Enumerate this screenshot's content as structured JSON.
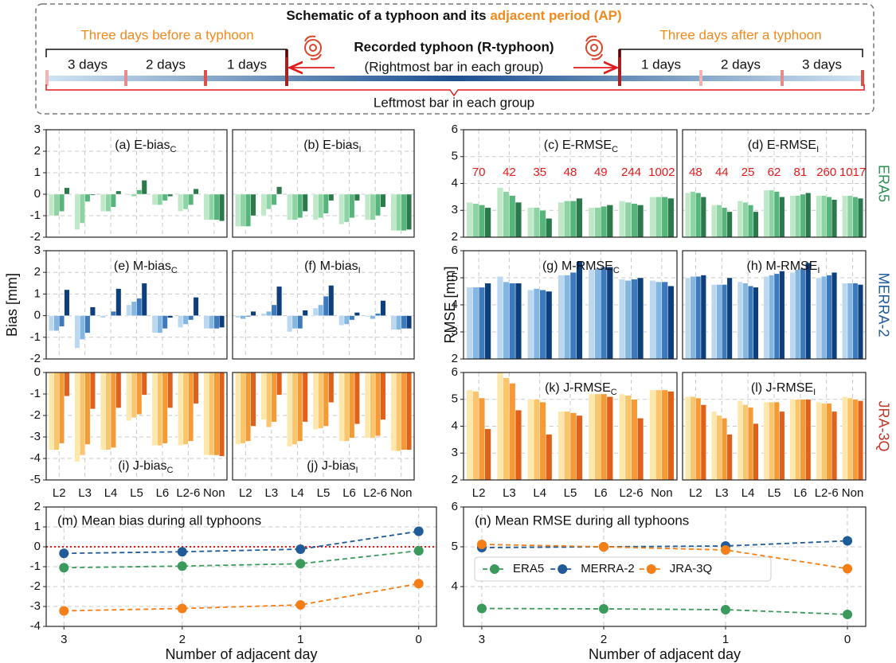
{
  "header": {
    "title": "Schematic of a typhoon and its ",
    "title_highlight": "adjacent period (AP)",
    "before": "Three days before a typhoon",
    "after": "Three days after a typhoon",
    "recorded": "Recorded typhoon (R-typhoon)",
    "rightmost": "(Rightmost bar in each group)",
    "leftmost": "Leftmost bar in each group",
    "days_before": [
      "3 days",
      "2 days",
      "1 days"
    ],
    "days_after": [
      "1 days",
      "2 days",
      "3 days"
    ]
  },
  "chart_data": [
    {
      "type": "bar",
      "title": "(a) E-bias",
      "title_sub": "C",
      "ylabel": "Bias [mm]",
      "ylim": [
        -2,
        3
      ],
      "yticks": [
        -2,
        -1,
        0,
        1,
        2,
        3
      ],
      "series": [
        {
          "color": "#bfe8c9",
          "values": [
            -1.0,
            -1.65,
            -0.8,
            -0.05,
            -0.5,
            -0.8,
            -1.2
          ]
        },
        {
          "color": "#8dd3a3",
          "values": [
            -1.0,
            -1.35,
            -0.8,
            -0.1,
            -0.5,
            -0.7,
            -1.2
          ]
        },
        {
          "color": "#56b57a",
          "values": [
            -0.8,
            -0.35,
            -0.6,
            0.2,
            -0.3,
            -0.5,
            -1.2
          ]
        },
        {
          "color": "#2b7a4b",
          "values": [
            0.3,
            -0.05,
            0.15,
            0.65,
            -0.1,
            0.25,
            -1.25
          ]
        }
      ]
    },
    {
      "type": "bar",
      "title": "(b) E-bias",
      "title_sub": "I",
      "ylim": [
        -2,
        3
      ],
      "yticks": [
        -2,
        -1,
        0,
        1,
        2,
        3
      ],
      "series": [
        {
          "color": "#bfe8c9",
          "values": [
            -1.5,
            -1.0,
            -1.2,
            -1.2,
            -1.4,
            -1.2,
            -1.7
          ]
        },
        {
          "color": "#8dd3a3",
          "values": [
            -1.5,
            -0.7,
            -1.2,
            -1.1,
            -1.3,
            -1.2,
            -1.7
          ]
        },
        {
          "color": "#56b57a",
          "values": [
            -1.5,
            -0.5,
            -1.1,
            -0.9,
            -1.1,
            -1.0,
            -1.7
          ]
        },
        {
          "color": "#2b7a4b",
          "values": [
            -1.0,
            0.35,
            -0.8,
            -0.3,
            -0.3,
            -0.6,
            -1.65
          ]
        }
      ]
    },
    {
      "type": "bar",
      "title": "(c) E-RMSE",
      "title_sub": "C",
      "ylabel": "RMSE [mm]",
      "ylim": [
        2,
        6
      ],
      "yticks": [
        2,
        3,
        4,
        5,
        6
      ],
      "counts": [
        70,
        42,
        35,
        48,
        49,
        244,
        1002
      ],
      "counts_color": "#e31a1c",
      "series": [
        {
          "color": "#bfe8c9",
          "values": [
            3.3,
            3.85,
            3.1,
            3.3,
            3.1,
            3.35,
            3.5
          ]
        },
        {
          "color": "#8dd3a3",
          "values": [
            3.25,
            3.7,
            3.1,
            3.35,
            3.1,
            3.3,
            3.5
          ]
        },
        {
          "color": "#56b57a",
          "values": [
            3.2,
            3.55,
            3.0,
            3.35,
            3.15,
            3.25,
            3.5
          ]
        },
        {
          "color": "#2b7a4b",
          "values": [
            3.1,
            3.3,
            2.7,
            3.45,
            3.2,
            3.2,
            3.45
          ]
        }
      ]
    },
    {
      "type": "bar",
      "title": "(d) E-RMSE",
      "title_sub": "I",
      "side_label": "ERA5",
      "side_label_color": "#2f8f55",
      "ylim": [
        2,
        6
      ],
      "yticks": [
        2,
        3,
        4,
        5,
        6
      ],
      "counts": [
        48,
        44,
        25,
        62,
        81,
        260,
        1017
      ],
      "counts_color": "#e31a1c",
      "series": [
        {
          "color": "#bfe8c9",
          "values": [
            3.65,
            3.2,
            3.35,
            3.75,
            3.55,
            3.55,
            3.55
          ]
        },
        {
          "color": "#8dd3a3",
          "values": [
            3.7,
            3.2,
            3.3,
            3.75,
            3.55,
            3.55,
            3.55
          ]
        },
        {
          "color": "#56b57a",
          "values": [
            3.65,
            3.1,
            3.2,
            3.7,
            3.6,
            3.5,
            3.5
          ]
        },
        {
          "color": "#2b7a4b",
          "values": [
            3.5,
            2.95,
            2.95,
            3.5,
            3.65,
            3.4,
            3.45
          ]
        }
      ]
    },
    {
      "type": "bar",
      "title": "(e) M-bias",
      "title_sub": "C",
      "ylim": [
        -2,
        3
      ],
      "yticks": [
        -2,
        -1,
        0,
        1,
        2,
        3
      ],
      "series": [
        {
          "color": "#bcd8f0",
          "values": [
            -0.7,
            -1.5,
            -0.1,
            0.5,
            -0.8,
            -0.55,
            -0.6
          ]
        },
        {
          "color": "#84b6e2",
          "values": [
            -0.7,
            -1.1,
            0.0,
            0.65,
            -0.8,
            -0.4,
            -0.6
          ]
        },
        {
          "color": "#3d79bd",
          "values": [
            -0.5,
            -0.8,
            0.2,
            0.8,
            -0.6,
            -0.2,
            -0.6
          ]
        },
        {
          "color": "#0e3f7d",
          "values": [
            1.2,
            0.4,
            1.25,
            1.5,
            -0.1,
            0.85,
            -0.55
          ]
        }
      ]
    },
    {
      "type": "bar",
      "title": "(f) M-bias",
      "title_sub": "I",
      "ylim": [
        -2,
        3
      ],
      "yticks": [
        -2,
        -1,
        0,
        1,
        2,
        3
      ],
      "series": [
        {
          "color": "#bcd8f0",
          "values": [
            -0.1,
            0.1,
            -0.75,
            0.35,
            -0.45,
            -0.05,
            -0.65
          ]
        },
        {
          "color": "#84b6e2",
          "values": [
            -0.15,
            0.2,
            -0.6,
            0.5,
            -0.4,
            -0.15,
            -0.65
          ]
        },
        {
          "color": "#3d79bd",
          "values": [
            -0.05,
            0.5,
            -0.6,
            0.9,
            -0.2,
            0.1,
            -0.6
          ]
        },
        {
          "color": "#0e3f7d",
          "values": [
            0.2,
            1.35,
            0.25,
            1.4,
            0.15,
            0.7,
            -0.6
          ]
        }
      ]
    },
    {
      "type": "bar",
      "title": "(g) M-RMSE",
      "title_sub": "C",
      "ylim": [
        2,
        6
      ],
      "yticks": [
        2,
        3,
        4,
        5,
        6
      ],
      "series": [
        {
          "color": "#bcd8f0",
          "values": [
            4.65,
            5.05,
            4.55,
            5.1,
            5.3,
            4.95,
            4.9
          ]
        },
        {
          "color": "#84b6e2",
          "values": [
            4.65,
            4.85,
            4.6,
            5.1,
            5.35,
            4.9,
            4.85
          ]
        },
        {
          "color": "#3d79bd",
          "values": [
            4.65,
            4.8,
            4.55,
            5.2,
            5.4,
            4.95,
            4.85
          ]
        },
        {
          "color": "#0e3f7d",
          "values": [
            4.8,
            4.8,
            4.5,
            5.6,
            5.4,
            5.0,
            4.7
          ]
        }
      ]
    },
    {
      "type": "bar",
      "title": "(h) M-RMSE",
      "title_sub": "I",
      "side_label": "MERRA-2",
      "side_label_color": "#1f5a99",
      "ylim": [
        2,
        6
      ],
      "yticks": [
        2,
        3,
        4,
        5,
        6
      ],
      "series": [
        {
          "color": "#bcd8f0",
          "values": [
            5.0,
            4.75,
            4.85,
            5.05,
            5.2,
            5.0,
            4.8
          ]
        },
        {
          "color": "#84b6e2",
          "values": [
            5.05,
            4.75,
            4.8,
            5.1,
            5.3,
            5.05,
            4.8
          ]
        },
        {
          "color": "#3d79bd",
          "values": [
            5.05,
            4.75,
            4.7,
            5.15,
            5.35,
            5.1,
            4.8
          ]
        },
        {
          "color": "#0e3f7d",
          "values": [
            5.1,
            5.0,
            4.65,
            5.25,
            5.55,
            5.2,
            4.75
          ]
        }
      ]
    },
    {
      "type": "bar",
      "title": "(i) J-bias",
      "title_sub": "C",
      "ylim": [
        -5,
        0
      ],
      "yticks": [
        -5,
        -4,
        -3,
        -2,
        -1,
        0
      ],
      "categories": [
        "L2",
        "L3",
        "L4",
        "L5",
        "L6",
        "L2-6",
        "Non"
      ],
      "series": [
        {
          "color": "#fde7aa",
          "values": [
            -3.6,
            -4.15,
            -3.6,
            -2.25,
            -3.4,
            -3.4,
            -3.85
          ]
        },
        {
          "color": "#fbc56b",
          "values": [
            -3.6,
            -3.85,
            -3.6,
            -2.1,
            -3.4,
            -3.35,
            -3.85
          ]
        },
        {
          "color": "#f59a35",
          "values": [
            -3.3,
            -3.35,
            -3.5,
            -1.95,
            -3.3,
            -3.2,
            -3.85
          ]
        },
        {
          "color": "#e0621a",
          "values": [
            -1.1,
            -1.7,
            -1.65,
            -1.05,
            -1.65,
            -1.45,
            -3.9
          ]
        }
      ]
    },
    {
      "type": "bar",
      "title": "(j) J-bias",
      "title_sub": "I",
      "ylim": [
        -5,
        0
      ],
      "yticks": [
        -5,
        -4,
        -3,
        -2,
        -1,
        0
      ],
      "categories": [
        "L2",
        "L3",
        "L4",
        "L5",
        "L6",
        "L2-6",
        "Non"
      ],
      "series": [
        {
          "color": "#fde7aa",
          "values": [
            -3.35,
            -2.2,
            -3.45,
            -2.65,
            -3.2,
            -3.05,
            -3.65
          ]
        },
        {
          "color": "#fbc56b",
          "values": [
            -3.3,
            -2.55,
            -3.35,
            -2.6,
            -3.2,
            -3.05,
            -3.65
          ]
        },
        {
          "color": "#f59a35",
          "values": [
            -3.2,
            -2.3,
            -3.2,
            -2.5,
            -3.05,
            -2.95,
            -3.6
          ]
        },
        {
          "color": "#e0621a",
          "values": [
            -2.5,
            -1.05,
            -2.3,
            -1.4,
            -2.4,
            -2.2,
            -3.6
          ]
        }
      ]
    },
    {
      "type": "bar",
      "title": "(k) J-RMSE",
      "title_sub": "C",
      "ylim": [
        2,
        6
      ],
      "yticks": [
        2,
        3,
        4,
        5,
        6
      ],
      "categories": [
        "L2",
        "L3",
        "L4",
        "L5",
        "L6",
        "L2-6",
        "Non"
      ],
      "series": [
        {
          "color": "#fde7aa",
          "values": [
            5.35,
            6.0,
            5.0,
            4.55,
            5.2,
            5.2,
            5.35
          ]
        },
        {
          "color": "#fbc56b",
          "values": [
            5.3,
            5.8,
            5.0,
            4.55,
            5.2,
            5.15,
            5.35
          ]
        },
        {
          "color": "#f59a35",
          "values": [
            5.05,
            5.6,
            4.9,
            4.5,
            5.2,
            5.0,
            5.35
          ]
        },
        {
          "color": "#e0621a",
          "values": [
            3.9,
            4.6,
            3.7,
            4.4,
            5.1,
            4.3,
            5.3
          ]
        }
      ]
    },
    {
      "type": "bar",
      "title": "(l) J-RMSE",
      "title_sub": "I",
      "side_label": "JRA-3Q",
      "side_label_color": "#c0392b",
      "ylim": [
        2,
        6
      ],
      "yticks": [
        2,
        3,
        4,
        5,
        6
      ],
      "categories": [
        "L2",
        "L3",
        "L4",
        "L5",
        "L6",
        "L2-6",
        "Non"
      ],
      "series": [
        {
          "color": "#fde7aa",
          "values": [
            5.1,
            4.55,
            4.95,
            4.9,
            5.0,
            4.9,
            5.1
          ]
        },
        {
          "color": "#fbc56b",
          "values": [
            5.1,
            4.4,
            4.8,
            4.9,
            5.0,
            4.85,
            5.05
          ]
        },
        {
          "color": "#f59a35",
          "values": [
            5.05,
            4.3,
            4.7,
            4.9,
            5.0,
            4.85,
            5.0
          ]
        },
        {
          "color": "#e0621a",
          "values": [
            4.8,
            3.7,
            4.1,
            4.55,
            5.0,
            4.55,
            4.95
          ]
        }
      ]
    },
    {
      "type": "line",
      "title": "(m) Mean bias during all typhoons",
      "xlabel": "Number of adjacent day",
      "x": [
        3,
        2,
        1,
        0
      ],
      "xlim": [
        3.15,
        -0.15
      ],
      "xticks": [
        3,
        2,
        1,
        0
      ],
      "ylim": [
        -4,
        2
      ],
      "yticks": [
        -4,
        -3,
        -2,
        -1,
        0,
        1,
        2
      ],
      "hline": 0,
      "hline_color": "#e31a1c",
      "grid": true,
      "series": [
        {
          "color": "#3a9a5c",
          "values": [
            -1.05,
            -0.97,
            -0.85,
            -0.2
          ]
        },
        {
          "color": "#1f5a99",
          "values": [
            -0.33,
            -0.25,
            -0.12,
            0.78
          ]
        },
        {
          "color": "#f57f17",
          "values": [
            -3.22,
            -3.1,
            -2.92,
            -1.85
          ]
        }
      ]
    },
    {
      "type": "line",
      "title": "(n) Mean RMSE during all typhoons",
      "xlabel": "Number of adjacent day",
      "x": [
        3,
        2,
        1,
        0
      ],
      "xlim": [
        3.15,
        -0.15
      ],
      "xticks": [
        3,
        2,
        1,
        0
      ],
      "ylim": [
        3,
        6
      ],
      "yticks": [
        4,
        5,
        6
      ],
      "grid": true,
      "legend": "center left",
      "series": [
        {
          "name": "ERA5",
          "color": "#3a9a5c",
          "values": [
            3.45,
            3.44,
            3.42,
            3.3
          ]
        },
        {
          "name": "MERRA-2",
          "color": "#1f5a99",
          "values": [
            4.98,
            5.0,
            5.02,
            5.15
          ]
        },
        {
          "name": "JRA-3Q",
          "color": "#f57f17",
          "values": [
            5.06,
            5.0,
            4.92,
            4.45
          ]
        }
      ]
    }
  ]
}
